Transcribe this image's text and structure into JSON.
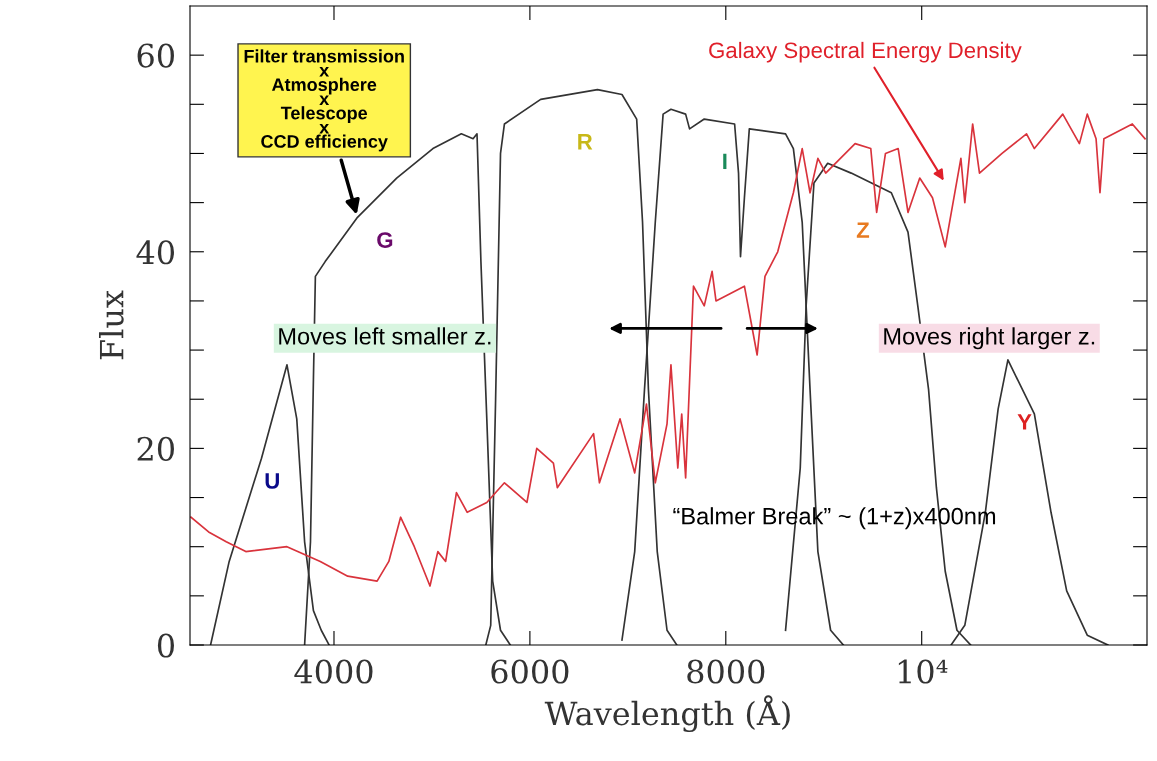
{
  "chart_data": {
    "type": "line",
    "xlabel": "Wavelength (Å)",
    "ylabel": "Flux",
    "xlim": [
      2530,
      12300
    ],
    "ylim": [
      0,
      65
    ],
    "xticks": [
      4000,
      6000,
      8000,
      {
        "value": 10000,
        "label": "10⁴"
      }
    ],
    "yticks": [
      0,
      {
        "value": 5,
        "label": null
      },
      {
        "value": 10,
        "label": null
      },
      {
        "value": 15,
        "label": null
      },
      20,
      {
        "value": 25,
        "label": null
      },
      {
        "value": 30,
        "label": null
      },
      {
        "value": 35,
        "label": null
      },
      40,
      {
        "value": 45,
        "label": null
      },
      {
        "value": 50,
        "label": null
      },
      {
        "value": 55,
        "label": null
      },
      60
    ],
    "grid": false,
    "marker": "none",
    "line_style": "solid",
    "series": [
      {
        "color": "#333333",
        "x": [
          2740,
          2930,
          3260,
          3520,
          3620,
          3700,
          3790,
          3870,
          3950
        ],
        "values": [
          0,
          8.5,
          19,
          28.5,
          23,
          10.5,
          3.5,
          1.5,
          0
        ]
      },
      {
        "color": "#333333",
        "x": [
          3700,
          3760,
          3790,
          3810,
          3910,
          4240,
          4640,
          5010,
          5300,
          5420,
          5460,
          5500,
          5560,
          5620,
          5700,
          5800
        ],
        "values": [
          0,
          10.5,
          27,
          37.5,
          39,
          43.5,
          47.5,
          50.5,
          52,
          51.5,
          52,
          39,
          23,
          6.5,
          1.5,
          0
        ]
      },
      {
        "color": "#333333",
        "x": [
          5550,
          5600,
          5650,
          5700,
          5740,
          6110,
          6690,
          6940,
          7090,
          7150,
          7210,
          7300,
          7400,
          7500
        ],
        "values": [
          0,
          2,
          25,
          50,
          53,
          55.5,
          56.5,
          56,
          53.5,
          43,
          26,
          9.5,
          1.5,
          0
        ]
      },
      {
        "color": "#333333",
        "x": [
          6940,
          7070,
          7170,
          7280,
          7360,
          7440,
          7590,
          7630,
          7780,
          8090,
          8130,
          8150,
          8190,
          8240,
          8610,
          8690,
          8780,
          8860,
          8940,
          9070,
          9200
        ],
        "values": [
          0.5,
          9.5,
          26,
          43,
          54,
          54.5,
          54,
          52.5,
          53.5,
          53,
          48,
          39.5,
          45.5,
          52.5,
          52,
          50.5,
          43,
          26,
          9.5,
          1.5,
          0
        ]
      },
      {
        "color": "#333333",
        "x": [
          8610,
          8760,
          8820,
          8900,
          9040,
          9280,
          9690,
          9860,
          9960,
          10070,
          10150,
          10240,
          10360,
          10500
        ],
        "values": [
          1.5,
          18,
          34.5,
          47,
          49,
          48,
          46,
          42,
          34.5,
          26,
          16,
          7.5,
          1.5,
          0
        ]
      },
      {
        "color": "#333333",
        "x": [
          10300,
          10440,
          10650,
          10780,
          10880,
          11150,
          11320,
          11480,
          11690,
          11900
        ],
        "values": [
          0,
          2,
          13.5,
          24,
          29,
          23.5,
          13.5,
          5.5,
          1,
          0
        ]
      },
      {
        "color": "#d9333c",
        "x": [
          2540,
          2720,
          2900,
          3100,
          3520,
          3860,
          4140,
          4440,
          4560,
          4680,
          4820,
          4980,
          5060,
          5140,
          5250,
          5360,
          5560,
          5740,
          5970,
          6070,
          6240,
          6280,
          6650,
          6710,
          6920,
          7070,
          7190,
          7280,
          7400,
          7440,
          7510,
          7550,
          7590,
          7670,
          7780,
          7860,
          7900,
          8190,
          8320,
          8400,
          8530,
          8690,
          8780,
          8860,
          8940,
          9020,
          9320,
          9480,
          9540,
          9630,
          9760,
          9860,
          9980,
          10110,
          10240,
          10400,
          10440,
          10520,
          10590,
          10820,
          11070,
          11150,
          11440,
          11610,
          11690,
          11780,
          11820,
          11860,
          12150,
          12280
        ],
        "values": [
          13,
          11.5,
          10.5,
          9.5,
          10,
          8.5,
          7,
          6.5,
          8.5,
          13,
          10,
          6,
          9.5,
          8.5,
          15.5,
          13.5,
          14.5,
          16.5,
          14.5,
          20,
          18.5,
          16,
          21.5,
          16.5,
          23,
          17.5,
          24.5,
          16.5,
          22.5,
          28.5,
          18,
          23.5,
          17,
          36.5,
          34.5,
          38,
          35,
          36.5,
          29.5,
          37.5,
          40,
          46,
          50.5,
          46,
          49.5,
          48,
          51,
          50.5,
          44,
          50,
          50.5,
          44,
          47.5,
          45.5,
          40.5,
          49.5,
          45,
          53,
          48,
          50,
          52,
          50.5,
          54,
          51,
          54,
          51.5,
          46,
          51.5,
          53,
          51.5
        ]
      }
    ],
    "annotations": [
      {
        "text": "Filter transmission\nx\nAtmosphere\nx\nTelescope\nx\nCCD efficiency",
        "x": 4240,
        "y": 43.5
      },
      "Galaxy Spectral Energy Density",
      "Moves left smaller z.",
      "Moves right larger z.",
      "“Balmer Break” ~ (1+z)x400nm",
      "U",
      "G",
      "R",
      "I",
      "Z",
      "Y"
    ]
  }
}
